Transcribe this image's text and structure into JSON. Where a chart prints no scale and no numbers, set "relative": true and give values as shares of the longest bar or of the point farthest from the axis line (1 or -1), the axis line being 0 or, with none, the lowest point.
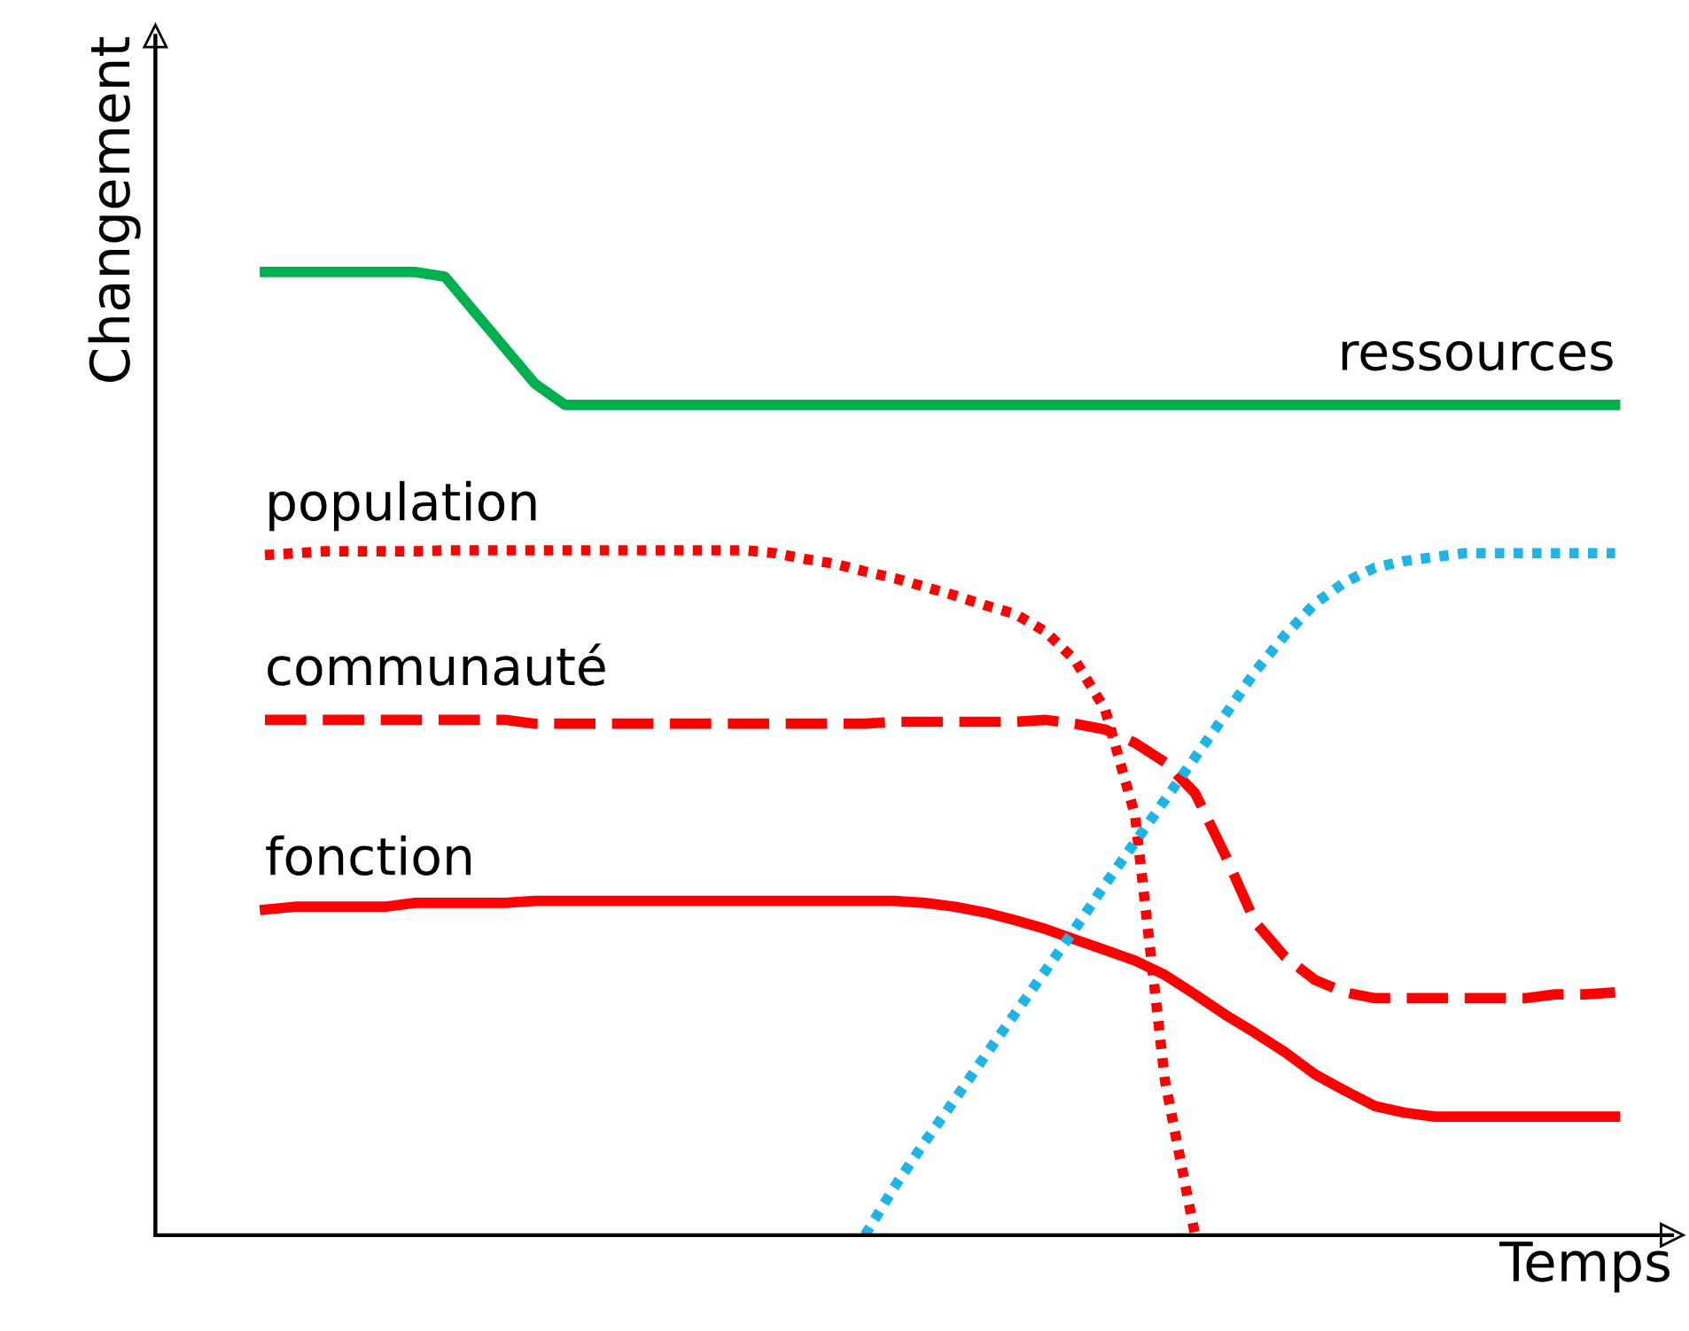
{
  "chart_data": {
    "type": "line",
    "relative": true,
    "xlabel": "Temps",
    "ylabel": "Changement",
    "marker": "none",
    "categories": [
      null,
      null,
      null,
      null,
      null,
      null,
      null,
      null,
      null,
      null,
      null,
      null,
      null,
      null,
      null,
      null,
      null,
      null,
      null,
      null,
      null,
      null,
      null,
      null,
      null,
      null,
      null,
      null,
      null,
      null,
      null,
      null,
      null,
      null,
      null,
      null,
      null,
      null,
      null,
      null,
      null,
      null,
      null,
      null,
      null,
      null
    ],
    "series": [
      {
        "name": "ressources",
        "color": "#00b050",
        "line_style": "solid",
        "values": [
          1.0,
          1.0,
          1.0,
          1.0,
          1.0,
          1.0,
          0.995,
          0.958,
          0.921,
          0.884,
          0.862,
          0.862,
          0.862,
          0.862,
          0.862,
          0.862,
          0.862,
          0.862,
          0.862,
          0.862,
          0.862,
          0.862,
          0.862,
          0.862,
          0.862,
          0.862,
          0.862,
          0.862,
          0.862,
          0.862,
          0.862,
          0.862,
          0.862,
          0.862,
          0.862,
          0.862,
          0.862,
          0.862,
          0.862,
          0.862,
          0.862,
          0.862,
          0.862,
          0.862,
          0.862,
          0.862
        ]
      },
      {
        "name": "population",
        "color": "#ff0000",
        "line_style": "dotted",
        "values": [
          0.706,
          0.708,
          0.71,
          0.71,
          0.71,
          0.71,
          0.711,
          0.711,
          0.711,
          0.711,
          0.711,
          0.711,
          0.711,
          0.711,
          0.711,
          0.711,
          0.711,
          0.708,
          0.702,
          0.697,
          0.689,
          0.682,
          0.673,
          0.664,
          0.654,
          0.645,
          0.627,
          0.597,
          0.546,
          0.436,
          0.16,
          0.0,
          null,
          null,
          null,
          null,
          null,
          null,
          null,
          null,
          null,
          null,
          null,
          null,
          null,
          null
        ]
      },
      {
        "name": "communauté",
        "color": "#ff0000",
        "line_style": "dashed",
        "values": [
          0.535,
          0.535,
          0.535,
          0.535,
          0.535,
          0.535,
          0.535,
          0.535,
          0.535,
          0.531,
          0.531,
          0.531,
          0.531,
          0.531,
          0.531,
          0.531,
          0.531,
          0.531,
          0.531,
          0.531,
          0.531,
          0.533,
          0.533,
          0.533,
          0.533,
          0.533,
          0.535,
          0.531,
          0.525,
          0.511,
          0.491,
          0.459,
          0.395,
          0.325,
          0.289,
          0.265,
          0.252,
          0.246,
          0.246,
          0.246,
          0.246,
          0.246,
          0.246,
          0.25,
          0.25,
          0.252
        ]
      },
      {
        "name": "fonction",
        "color": "#ff0000",
        "line_style": "solid",
        "values": [
          0.338,
          0.341,
          0.341,
          0.341,
          0.341,
          0.345,
          0.345,
          0.345,
          0.345,
          0.347,
          0.347,
          0.347,
          0.347,
          0.347,
          0.347,
          0.347,
          0.347,
          0.347,
          0.347,
          0.347,
          0.347,
          0.347,
          0.345,
          0.341,
          0.335,
          0.327,
          0.318,
          0.307,
          0.296,
          0.285,
          0.27,
          0.25,
          0.229,
          0.21,
          0.19,
          0.167,
          0.15,
          0.134,
          0.127,
          0.123,
          0.123,
          0.123,
          0.123,
          0.123,
          0.123,
          0.123
        ]
      },
      {
        "color": "#1fb4e8",
        "line_style": "dotted",
        "values": [
          null,
          null,
          null,
          null,
          null,
          null,
          null,
          null,
          null,
          null,
          null,
          null,
          null,
          null,
          null,
          null,
          null,
          null,
          null,
          null,
          0.0,
          0.051,
          0.097,
          0.141,
          0.186,
          0.23,
          0.274,
          0.318,
          0.364,
          0.408,
          0.452,
          0.496,
          0.54,
          0.585,
          0.623,
          0.656,
          0.678,
          0.693,
          0.7,
          0.704,
          0.708,
          0.708,
          0.708,
          0.708,
          0.708,
          0.708
        ]
      }
    ]
  }
}
